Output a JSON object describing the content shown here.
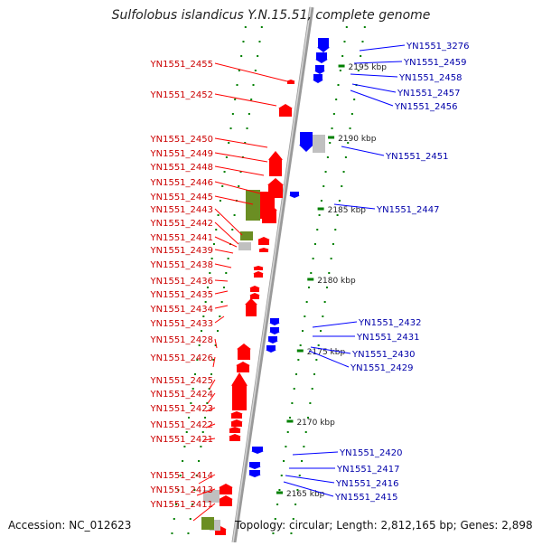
{
  "title": "Sulfolobus islandicus Y.N.15.51, complete genome",
  "accession": "Accession: NC_012623",
  "topology": "Topology: circular; Length: 2,812,165 bp; Genes: 2,898",
  "colors": {
    "forward": "#ff0000",
    "reverse": "#0000ff",
    "rna": "#6b8e23",
    "pseudo": "#c0c0c0",
    "tick": "#008000",
    "axis": "#808080",
    "left_label": "#cc0000",
    "right_label": "#0000aa"
  },
  "scale": {
    "labels": [
      "2195 kbp",
      "2190 kbp",
      "2185 kbp",
      "2180 kbp",
      "2175 kbp",
      "2170 kbp",
      "2165 kbp"
    ]
  },
  "left_genes": [
    "YN1551_2455",
    "YN1551_2452",
    "YN1551_2450",
    "YN1551_2449",
    "YN1551_2448",
    "YN1551_2446",
    "YN1551_2445",
    "YN1551_2443",
    "YN1551_2442",
    "YN1551_2441",
    "YN1551_2439",
    "YN1551_2438",
    "YN1551_2436",
    "YN1551_2435",
    "YN1551_2434",
    "YN1551_2433",
    "YN1551_2428",
    "YN1551_2426",
    "YN1551_2425",
    "YN1551_2424",
    "YN1551_2423",
    "YN1551_2422",
    "YN1551_2421",
    "YN1551_2414",
    "YN1551_2413",
    "YN1551_2411"
  ],
  "right_genes": [
    "YN1551_3276",
    "YN1551_2459",
    "YN1551_2458",
    "YN1551_2457",
    "YN1551_2456",
    "YN1551_2451",
    "YN1551_2447",
    "YN1551_2432",
    "YN1551_2431",
    "YN1551_2430",
    "YN1551_2429",
    "YN1551_2420",
    "YN1551_2417",
    "YN1551_2416",
    "YN1551_2415"
  ]
}
